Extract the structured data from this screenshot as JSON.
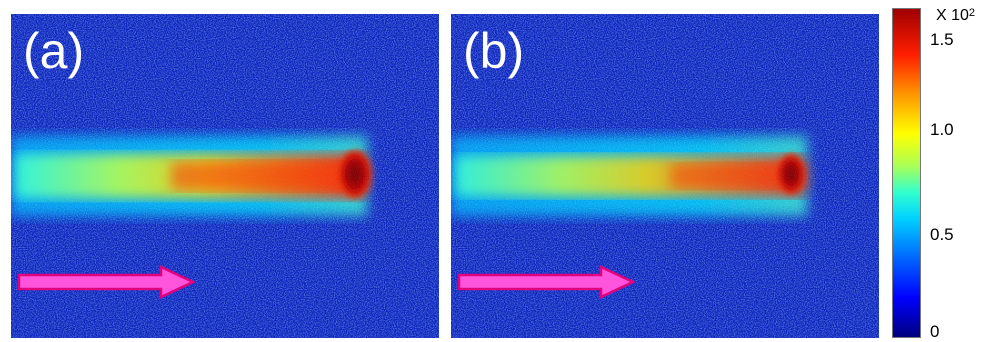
{
  "panels": [
    {
      "label": "(a)"
    },
    {
      "label": "(b)"
    }
  ],
  "colorbar": {
    "multiplier_prefix": "X 10",
    "multiplier_exponent": "2",
    "ticks": [
      "1.5",
      "1.0",
      "0.5",
      "0"
    ],
    "colormap": "jet"
  },
  "colors": {
    "background_blue": "#0a20b8",
    "arrow_fill": "#ff55dd",
    "arrow_stroke": "#e0007e"
  }
}
